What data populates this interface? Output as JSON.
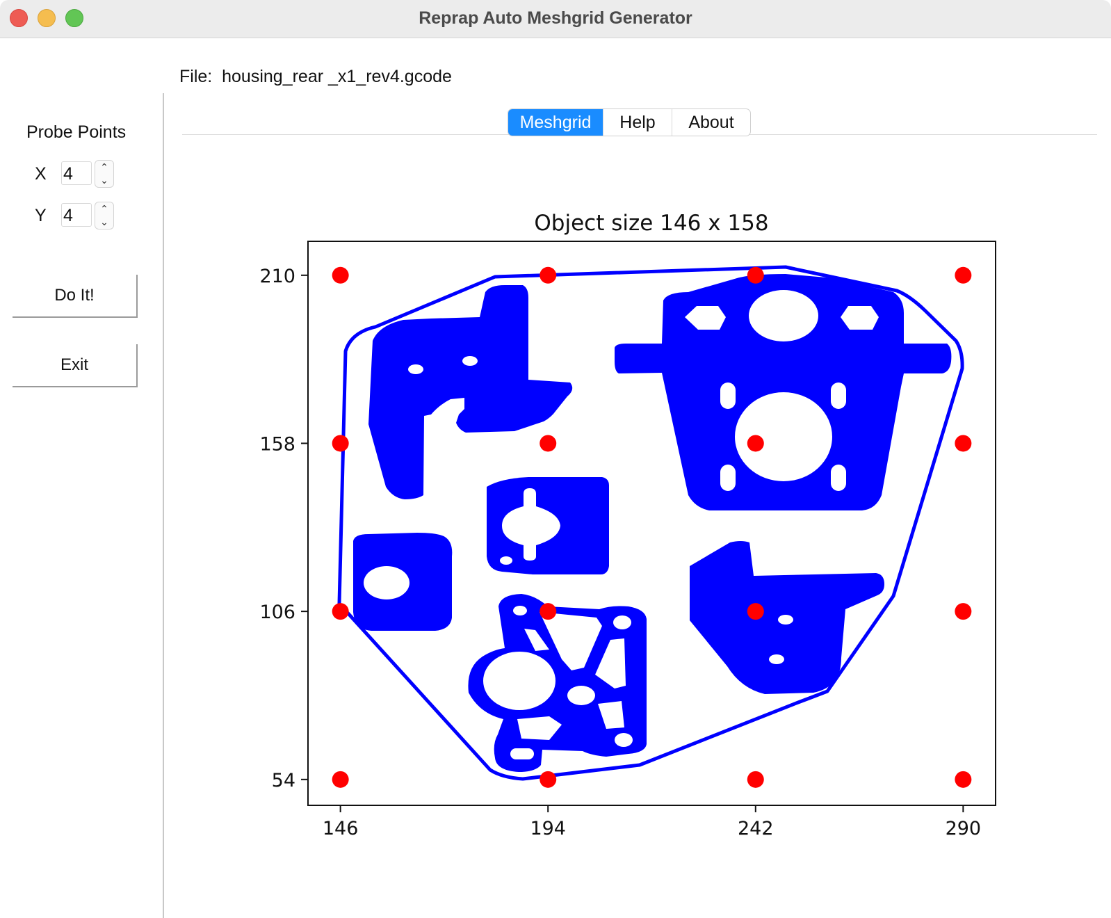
{
  "window": {
    "title": "Reprap Auto Meshgrid Generator"
  },
  "file": {
    "label": "File:  housing_rear _x1_rev4.gcode"
  },
  "sidebar": {
    "probe_title": "Probe Points",
    "x_label": "X",
    "x_value": "4",
    "y_label": "Y",
    "y_value": "4",
    "do_it_label": "Do It!",
    "exit_label": "Exit"
  },
  "tabs": [
    {
      "label": "Meshgrid",
      "active": true
    },
    {
      "label": "Help",
      "active": false
    },
    {
      "label": "About",
      "active": false
    }
  ],
  "colors": {
    "accent": "#1a8cff",
    "object_outline": "#0000ff",
    "probe_points": "#ff0000"
  },
  "chart_data": {
    "type": "scatter",
    "title": "Object size 146 x 158",
    "xlabel": "",
    "ylabel": "",
    "x_ticks": [
      146,
      194,
      242,
      290
    ],
    "y_ticks": [
      210,
      158,
      106,
      54
    ],
    "xlim": [
      138.5,
      297.5
    ],
    "ylim": [
      46,
      220.5
    ],
    "grid": false,
    "series": [
      {
        "marker": "circle",
        "color": "#ff0000",
        "points": [
          [
            146,
            210
          ],
          [
            194,
            210
          ],
          [
            242,
            210
          ],
          [
            290,
            210
          ],
          [
            146,
            158
          ],
          [
            194,
            158
          ],
          [
            242,
            158
          ],
          [
            290,
            158
          ],
          [
            146,
            106
          ],
          [
            194,
            106
          ],
          [
            242,
            106
          ],
          [
            290,
            106
          ],
          [
            146,
            54
          ],
          [
            194,
            54
          ],
          [
            242,
            54
          ],
          [
            290,
            54
          ]
        ]
      }
    ]
  }
}
